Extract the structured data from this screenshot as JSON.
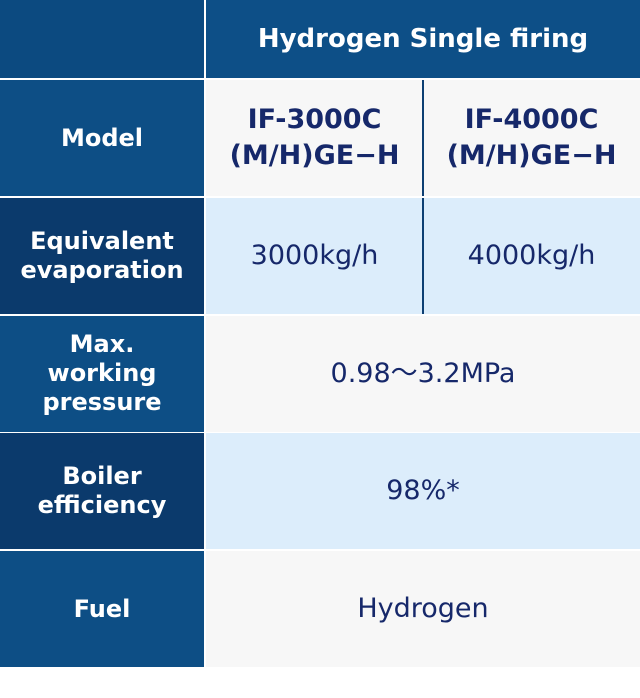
{
  "header": {
    "title": "Hydrogen Single firing"
  },
  "rows": [
    {
      "label": "Model",
      "values": [
        "IF-3000C\n(M/H)GE−H",
        "IF-4000C\n(M/H)GE−H"
      ]
    },
    {
      "label": "Equivalent\nevaporation",
      "values": [
        "3000kg/h",
        "4000kg/h"
      ]
    },
    {
      "label": "Max.\nworking\npressure",
      "values": [
        "0.98～3.2MPa"
      ]
    },
    {
      "label": "Boiler\nefficiency",
      "values": [
        "98%*"
      ]
    },
    {
      "label": "Fuel",
      "values": [
        "Hydrogen"
      ]
    }
  ]
}
